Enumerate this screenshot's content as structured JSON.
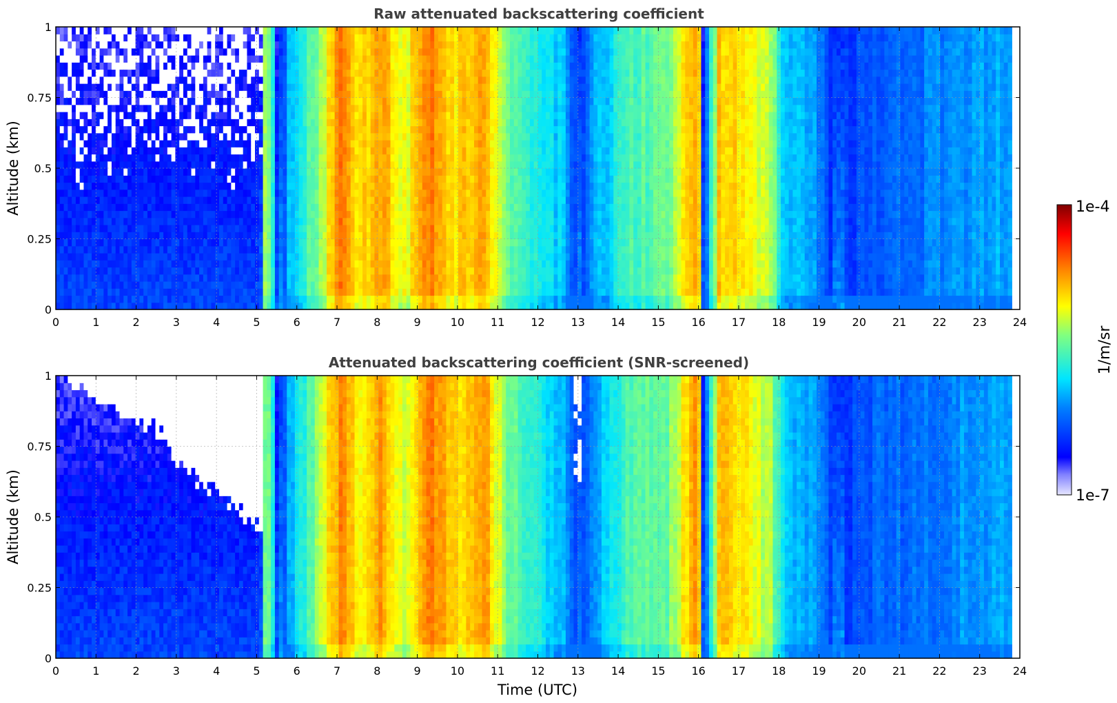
{
  "chart_data": [
    {
      "type": "heatmap",
      "title": "Raw attenuated backscattering coefficient",
      "xlabel": "",
      "ylabel": "Altitude (km)",
      "xlim": [
        0,
        24
      ],
      "ylim": [
        0,
        1
      ],
      "x_ticks": [
        "0",
        "1",
        "2",
        "3",
        "4",
        "5",
        "6",
        "7",
        "8",
        "9",
        "10",
        "11",
        "12",
        "13",
        "14",
        "15",
        "16",
        "17",
        "18",
        "19",
        "20",
        "21",
        "22",
        "23",
        "24"
      ],
      "y_ticks": [
        "0",
        "0.25",
        "0.5",
        "0.75",
        "1"
      ],
      "grid": true,
      "time_extent_hours": [
        0,
        23.8
      ],
      "time_profile": [
        {
          "t": 0.0,
          "level": 0.1
        },
        {
          "t": 5.1,
          "level": 0.1
        },
        {
          "t": 5.2,
          "level": 0.55
        },
        {
          "t": 5.4,
          "level": 0.48
        },
        {
          "t": 5.5,
          "level": 0.12
        },
        {
          "t": 5.8,
          "level": 0.35
        },
        {
          "t": 6.5,
          "level": 0.55
        },
        {
          "t": 7.1,
          "level": 0.78
        },
        {
          "t": 7.5,
          "level": 0.66
        },
        {
          "t": 8.1,
          "level": 0.74
        },
        {
          "t": 8.7,
          "level": 0.62
        },
        {
          "t": 9.3,
          "level": 0.8
        },
        {
          "t": 9.9,
          "level": 0.68
        },
        {
          "t": 10.7,
          "level": 0.74
        },
        {
          "t": 11.2,
          "level": 0.55
        },
        {
          "t": 12.0,
          "level": 0.42
        },
        {
          "t": 12.6,
          "level": 0.38
        },
        {
          "t": 13.0,
          "level": 0.18
        },
        {
          "t": 13.4,
          "level": 0.32
        },
        {
          "t": 14.2,
          "level": 0.48
        },
        {
          "t": 15.2,
          "level": 0.52
        },
        {
          "t": 16.0,
          "level": 0.78
        },
        {
          "t": 16.1,
          "level": 0.12
        },
        {
          "t": 16.5,
          "level": 0.72
        },
        {
          "t": 17.2,
          "level": 0.66
        },
        {
          "t": 17.8,
          "level": 0.58
        },
        {
          "t": 18.1,
          "level": 0.4
        },
        {
          "t": 19.0,
          "level": 0.3
        },
        {
          "t": 19.4,
          "level": 0.18
        },
        {
          "t": 20.5,
          "level": 0.26
        },
        {
          "t": 21.5,
          "level": 0.28
        },
        {
          "t": 22.5,
          "level": 0.32
        },
        {
          "t": 23.8,
          "level": 0.34
        }
      ],
      "masked_region": null
    },
    {
      "type": "heatmap",
      "title": "Attenuated backscattering coefficient (SNR-screened)",
      "xlabel": "Time (UTC)",
      "ylabel": "Altitude (km)",
      "xlim": [
        0,
        24
      ],
      "ylim": [
        0,
        1
      ],
      "x_ticks": [
        "0",
        "1",
        "2",
        "3",
        "4",
        "5",
        "6",
        "7",
        "8",
        "9",
        "10",
        "11",
        "12",
        "13",
        "14",
        "15",
        "16",
        "17",
        "18",
        "19",
        "20",
        "21",
        "22",
        "23",
        "24"
      ],
      "y_ticks": [
        "0",
        "0.25",
        "0.5",
        "0.75",
        "1"
      ],
      "grid": true,
      "time_extent_hours": [
        0,
        23.8
      ],
      "masked_region": {
        "description": "low-SNR values removed (white) above a boundary that descends from ~1 km at 0 UTC to ~0.45 km near 5 UTC, plus a narrow gap near 13 UTC above ~0.6 km",
        "boundary": [
          {
            "t": 0.0,
            "alt": 0.99
          },
          {
            "t": 0.5,
            "alt": 0.95
          },
          {
            "t": 1.0,
            "alt": 0.9
          },
          {
            "t": 1.5,
            "alt": 0.86
          },
          {
            "t": 2.0,
            "alt": 0.82
          },
          {
            "t": 2.5,
            "alt": 0.8
          },
          {
            "t": 3.0,
            "alt": 0.7
          },
          {
            "t": 3.5,
            "alt": 0.62
          },
          {
            "t": 4.0,
            "alt": 0.58
          },
          {
            "t": 4.5,
            "alt": 0.52
          },
          {
            "t": 5.0,
            "alt": 0.46
          },
          {
            "t": 5.1,
            "alt": 0.46
          }
        ]
      }
    }
  ],
  "colorbar": {
    "label": "1/m/sr",
    "min_label": "1e-7",
    "max_label": "1e-4",
    "colormap": "jet"
  }
}
